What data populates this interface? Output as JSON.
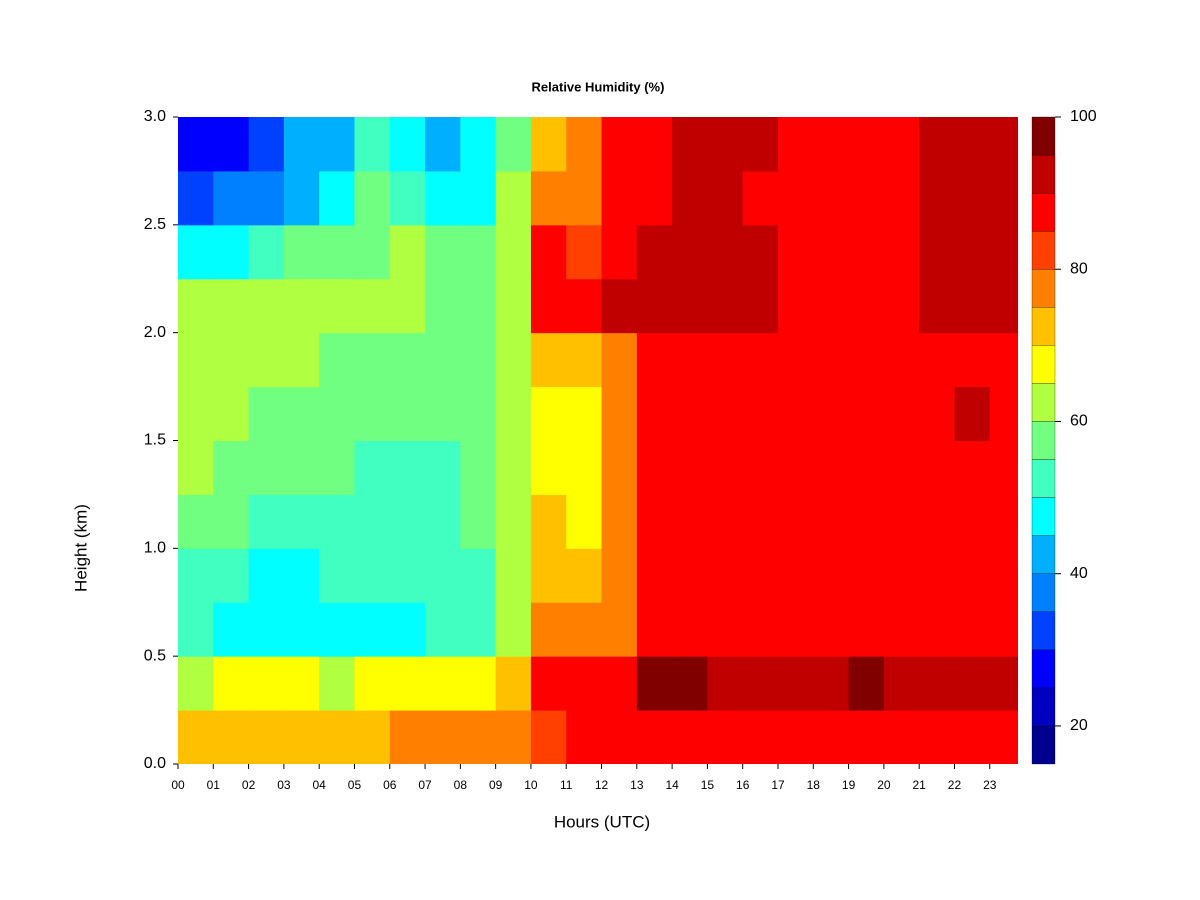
{
  "chart_data": {
    "type": "heatmap",
    "title": "Relative Humidity (%)",
    "x_label": "Hours (UTC)",
    "y_label": "Height (km)",
    "x": [
      0.5,
      1.5,
      2.5,
      3.5,
      4.5,
      5.5,
      6.5,
      7.5,
      8.5,
      9.5,
      10.5,
      11.5,
      12.5,
      13.5,
      14.5,
      15.5,
      16.5,
      17.5,
      18.5,
      19.5,
      20.5,
      21.5,
      22.5,
      23.5
    ],
    "y": [
      0.125,
      0.375,
      0.625,
      0.875,
      1.125,
      1.375,
      1.625,
      1.875,
      2.125,
      2.375,
      2.625,
      2.875
    ],
    "z": [
      [
        74,
        74,
        73,
        73,
        72,
        73,
        76,
        76,
        76,
        78,
        85,
        86,
        87,
        88,
        88,
        88,
        87,
        86,
        87,
        88,
        87,
        87,
        88,
        88
      ],
      [
        65,
        66,
        66,
        66,
        65,
        66,
        68,
        69,
        70,
        75,
        88,
        88,
        90,
        96,
        96,
        95,
        94,
        94,
        95,
        96,
        94,
        95,
        94,
        93
      ],
      [
        52,
        50,
        49,
        48,
        49,
        50,
        50,
        51,
        52,
        65,
        80,
        76,
        80,
        90,
        90,
        89,
        88,
        89,
        90,
        90,
        89,
        90,
        89,
        88
      ],
      [
        53,
        51,
        50,
        50,
        51,
        52,
        53,
        53,
        54,
        64,
        75,
        72,
        78,
        88,
        89,
        88,
        87,
        88,
        89,
        89,
        88,
        89,
        88,
        87
      ],
      [
        58,
        56,
        55,
        55,
        55,
        55,
        55,
        55,
        56,
        62,
        72,
        70,
        76,
        87,
        88,
        88,
        87,
        87,
        88,
        89,
        88,
        88,
        88,
        87
      ],
      [
        62,
        60,
        58,
        57,
        56,
        55,
        55,
        55,
        56,
        62,
        70,
        70,
        76,
        86,
        87,
        88,
        86,
        87,
        88,
        89,
        89,
        88,
        89,
        88
      ],
      [
        63,
        62,
        60,
        59,
        58,
        57,
        57,
        56,
        56,
        62,
        70,
        70,
        77,
        86,
        87,
        88,
        86,
        87,
        88,
        90,
        89,
        89,
        91,
        90
      ],
      [
        63,
        63,
        62,
        61,
        60,
        59,
        58,
        57,
        57,
        63,
        72,
        72,
        80,
        87,
        88,
        88,
        87,
        88,
        89,
        90,
        89,
        90,
        90,
        89
      ],
      [
        62,
        62,
        62,
        62,
        61,
        62,
        62,
        59,
        58,
        65,
        88,
        89,
        91,
        92,
        93,
        93,
        92,
        90,
        89,
        89,
        90,
        91,
        92,
        91
      ],
      [
        48,
        50,
        55,
        58,
        58,
        60,
        62,
        58,
        57,
        63,
        87,
        85,
        88,
        91,
        94,
        95,
        94,
        90,
        89,
        89,
        90,
        91,
        93,
        92
      ],
      [
        35,
        36,
        40,
        45,
        48,
        56,
        52,
        50,
        50,
        62,
        78,
        80,
        86,
        90,
        91,
        91,
        90,
        90,
        89,
        89,
        90,
        91,
        92,
        91
      ],
      [
        28,
        30,
        35,
        42,
        45,
        55,
        50,
        45,
        48,
        60,
        72,
        76,
        86,
        90,
        91,
        92,
        91,
        90,
        89,
        89,
        90,
        92,
        93,
        92
      ]
    ],
    "xlim": [
      0,
      23.8
    ],
    "ylim": [
      0,
      3
    ],
    "xticks": [
      {
        "value": 0,
        "label": "00"
      },
      {
        "value": 1,
        "label": "01"
      },
      {
        "value": 2,
        "label": "02"
      },
      {
        "value": 3,
        "label": "03"
      },
      {
        "value": 4,
        "label": "04"
      },
      {
        "value": 5,
        "label": "05"
      },
      {
        "value": 6,
        "label": "06"
      },
      {
        "value": 7,
        "label": "07"
      },
      {
        "value": 8,
        "label": "08"
      },
      {
        "value": 9,
        "label": "09"
      },
      10,
      11,
      12,
      13,
      14,
      15,
      16,
      17,
      18,
      19,
      20,
      21,
      22,
      23
    ],
    "yticks": [
      {
        "value": 0,
        "label": "0.0"
      },
      0.5,
      {
        "value": 1,
        "label": "1.0"
      },
      1.5,
      {
        "value": 2,
        "label": "2.0"
      },
      2.5,
      {
        "value": 3,
        "label": "3.0"
      }
    ],
    "levels": [
      15,
      20,
      25,
      30,
      35,
      40,
      45,
      50,
      55,
      60,
      65,
      70,
      75,
      80,
      85,
      90,
      95,
      100
    ],
    "colors": [
      "#00008f",
      "#0000c0",
      "#0000ff",
      "#0040ff",
      "#0080ff",
      "#00b0ff",
      "#00ffff",
      "#40ffc0",
      "#70ff80",
      "#b0ff40",
      "#ffff00",
      "#ffc000",
      "#ff8000",
      "#ff4000",
      "#ff0000",
      "#c00000",
      "#800000"
    ],
    "colorbar_ticks": [
      20,
      40,
      60,
      80,
      100
    ]
  }
}
